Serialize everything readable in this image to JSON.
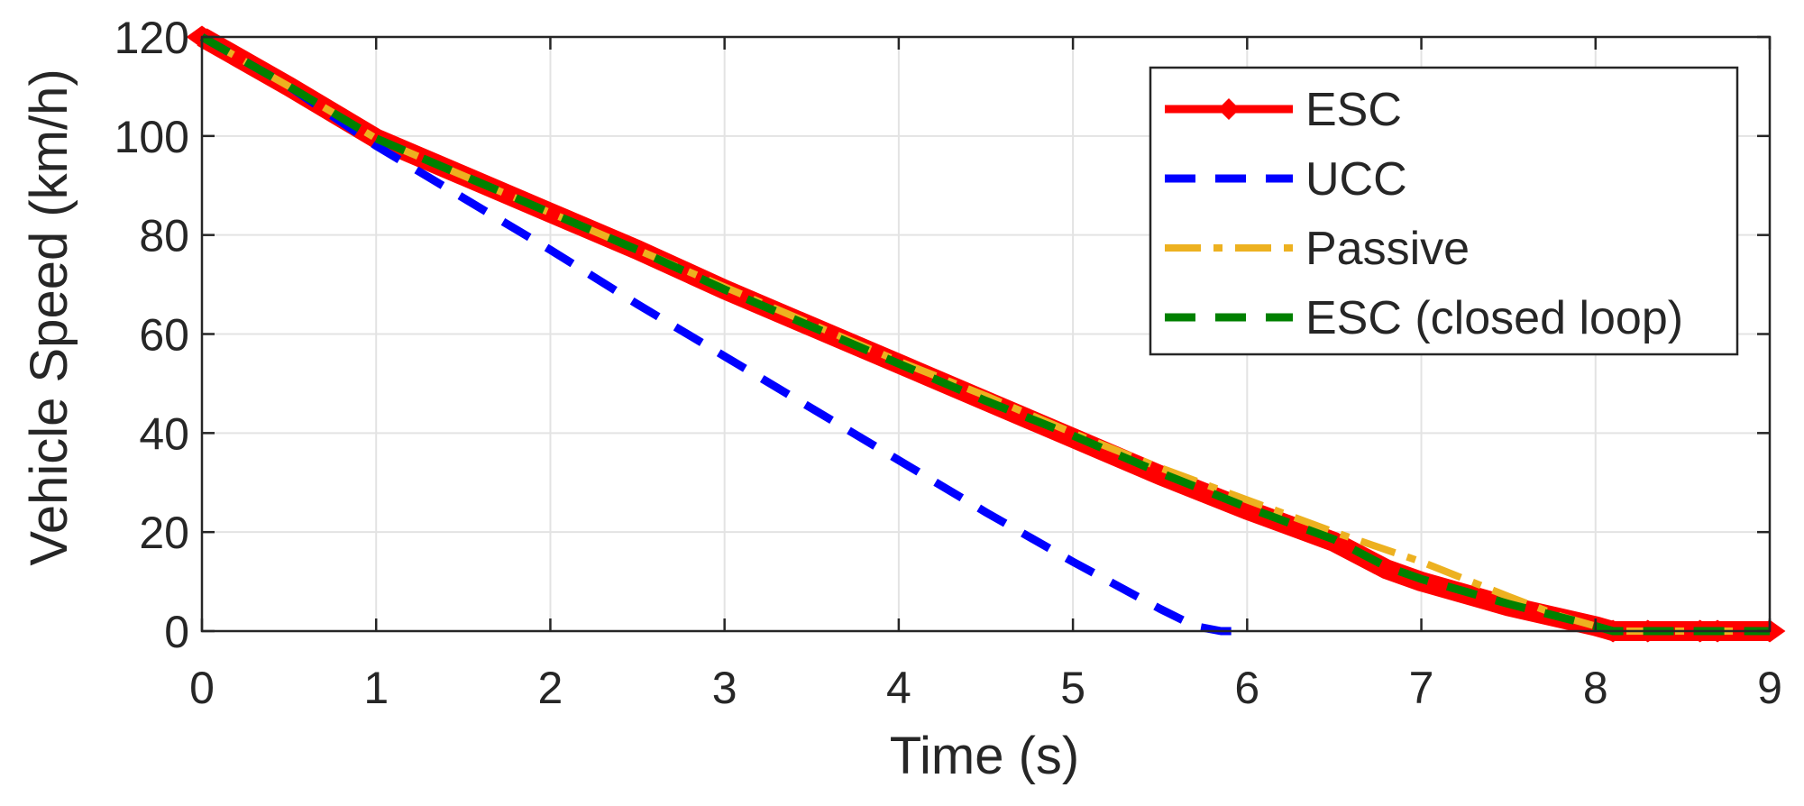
{
  "chart_data": {
    "type": "line",
    "title": "",
    "xlabel": "Time (s)",
    "ylabel": "Vehicle Speed (km/h)",
    "xlim": [
      0,
      9
    ],
    "ylim": [
      0,
      120
    ],
    "xticks": [
      0,
      1,
      2,
      3,
      4,
      5,
      6,
      7,
      8,
      9
    ],
    "yticks": [
      0,
      20,
      40,
      60,
      80,
      100,
      120
    ],
    "grid": true,
    "legend_position": "top-right",
    "series": [
      {
        "name": "ESC",
        "color": "#ff0000",
        "style": "solid-diamond-markers",
        "points": [
          [
            0,
            120
          ],
          [
            0.5,
            110
          ],
          [
            1,
            99.5
          ],
          [
            1.5,
            92
          ],
          [
            2,
            84.5
          ],
          [
            2.5,
            77
          ],
          [
            3,
            69
          ],
          [
            3.5,
            61.5
          ],
          [
            4,
            54
          ],
          [
            4.5,
            46.5
          ],
          [
            5,
            39
          ],
          [
            5.5,
            31.5
          ],
          [
            6,
            24.5
          ],
          [
            6.5,
            18
          ],
          [
            6.8,
            12.5
          ],
          [
            7,
            10
          ],
          [
            7.5,
            5
          ],
          [
            8,
            1
          ],
          [
            8.1,
            0
          ],
          [
            8.5,
            0
          ],
          [
            9,
            0
          ]
        ]
      },
      {
        "name": "UCC",
        "color": "#0000ff",
        "style": "dashed",
        "points": [
          [
            0,
            120
          ],
          [
            0.5,
            110
          ],
          [
            1,
            98
          ],
          [
            1.5,
            87.5
          ],
          [
            2,
            77
          ],
          [
            2.5,
            66
          ],
          [
            3,
            55.5
          ],
          [
            3.5,
            45
          ],
          [
            4,
            34.5
          ],
          [
            4.5,
            24
          ],
          [
            5,
            14
          ],
          [
            5.5,
            4.5
          ],
          [
            5.7,
            1
          ],
          [
            5.85,
            0
          ],
          [
            6,
            0
          ]
        ]
      },
      {
        "name": "Passive",
        "color": "#edb120",
        "style": "dash-dot",
        "points": [
          [
            0,
            120
          ],
          [
            0.5,
            110
          ],
          [
            1,
            99.5
          ],
          [
            1.5,
            92
          ],
          [
            2,
            84.5
          ],
          [
            2.5,
            77
          ],
          [
            3,
            69.5
          ],
          [
            3.5,
            62
          ],
          [
            4,
            54.5
          ],
          [
            4.5,
            47.5
          ],
          [
            5,
            40
          ],
          [
            5.5,
            33
          ],
          [
            6,
            26.5
          ],
          [
            6.5,
            20
          ],
          [
            7,
            14
          ],
          [
            7.5,
            7
          ],
          [
            7.8,
            3
          ],
          [
            8.1,
            0
          ],
          [
            8.5,
            0
          ],
          [
            9,
            0
          ]
        ]
      },
      {
        "name": "ESC (closed loop)",
        "color": "#008000",
        "style": "dashed",
        "points": [
          [
            0,
            120
          ],
          [
            0.5,
            110
          ],
          [
            1,
            99.5
          ],
          [
            1.5,
            92
          ],
          [
            2,
            84.5
          ],
          [
            2.5,
            77
          ],
          [
            3,
            69
          ],
          [
            3.5,
            61.5
          ],
          [
            4,
            54
          ],
          [
            4.5,
            46.5
          ],
          [
            5,
            39.5
          ],
          [
            5.5,
            32
          ],
          [
            6,
            25
          ],
          [
            6.5,
            18.5
          ],
          [
            6.8,
            13
          ],
          [
            7,
            10.5
          ],
          [
            7.5,
            5.5
          ],
          [
            8,
            1
          ],
          [
            8.1,
            0
          ],
          [
            8.5,
            0
          ],
          [
            9,
            0
          ]
        ]
      }
    ],
    "esc_marker_points": [
      [
        0,
        120
      ],
      [
        8.1,
        0
      ],
      [
        8.3,
        0
      ],
      [
        8.6,
        0
      ],
      [
        8.7,
        0
      ],
      [
        9,
        0
      ]
    ]
  }
}
